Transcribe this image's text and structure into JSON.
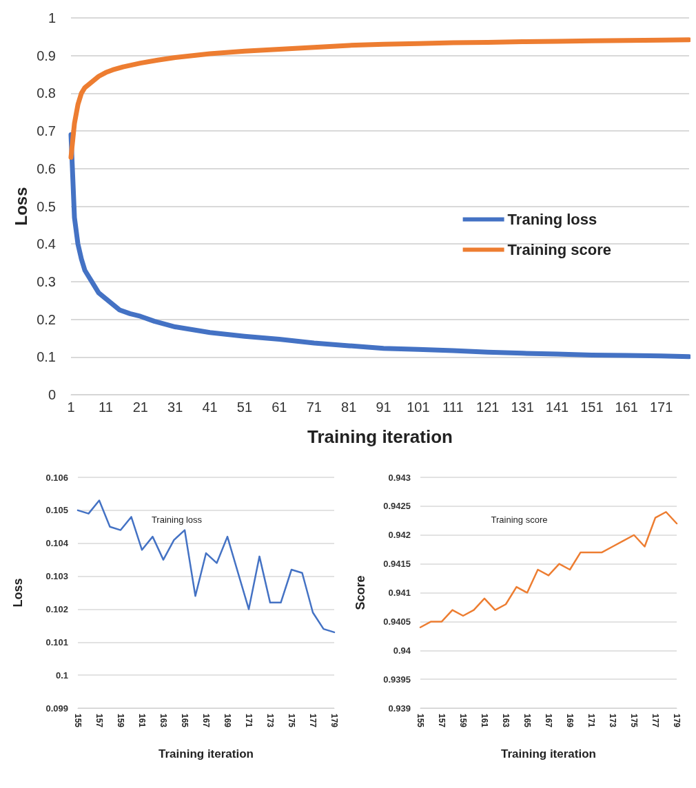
{
  "chart_data": [
    {
      "type": "line",
      "xlabel": "Training iteration",
      "ylabel": "Loss",
      "xlim": [
        1,
        179
      ],
      "xticks": [
        1,
        11,
        21,
        31,
        41,
        51,
        61,
        71,
        81,
        91,
        101,
        111,
        121,
        131,
        141,
        151,
        161,
        171
      ],
      "ylim": [
        0,
        1
      ],
      "yticks": [
        0,
        0.1,
        0.2,
        0.3,
        0.4,
        0.5,
        0.6,
        0.7,
        0.8,
        0.9,
        1
      ],
      "grid": "y",
      "legend": "right",
      "marker": "none",
      "line_style": "solid",
      "series": [
        {
          "name": "Traning loss",
          "color": "#4472c4",
          "x": [
            1,
            2,
            3,
            4,
            5,
            7,
            9,
            11,
            13,
            15,
            18,
            21,
            25,
            31,
            41,
            51,
            61,
            71,
            81,
            91,
            101,
            111,
            121,
            131,
            141,
            151,
            161,
            171,
            179
          ],
          "values": [
            0.69,
            0.47,
            0.4,
            0.36,
            0.33,
            0.3,
            0.27,
            0.255,
            0.24,
            0.225,
            0.215,
            0.208,
            0.195,
            0.18,
            0.165,
            0.155,
            0.147,
            0.137,
            0.13,
            0.123,
            0.12,
            0.117,
            0.113,
            0.11,
            0.108,
            0.105,
            0.104,
            0.103,
            0.101
          ]
        },
        {
          "name": "Training score",
          "color": "#ed7d31",
          "x": [
            1,
            2,
            3,
            4,
            5,
            7,
            9,
            11,
            13,
            16,
            21,
            26,
            31,
            41,
            51,
            61,
            71,
            81,
            91,
            101,
            111,
            121,
            131,
            141,
            151,
            161,
            171,
            179
          ],
          "values": [
            0.63,
            0.72,
            0.77,
            0.8,
            0.815,
            0.83,
            0.845,
            0.855,
            0.862,
            0.87,
            0.88,
            0.888,
            0.895,
            0.905,
            0.912,
            0.917,
            0.922,
            0.927,
            0.93,
            0.932,
            0.934,
            0.935,
            0.937,
            0.938,
            0.939,
            0.94,
            0.941,
            0.942
          ]
        }
      ]
    },
    {
      "type": "line",
      "title": "Training loss",
      "xlabel": "Training iteration",
      "ylabel": "Loss",
      "categories": [
        "155",
        null,
        "157",
        null,
        "159",
        null,
        "161",
        null,
        "163",
        null,
        "165",
        null,
        "167",
        null,
        "169",
        null,
        "171",
        null,
        "173",
        null,
        "175",
        null,
        "177",
        null,
        "179"
      ],
      "ylim": [
        0.099,
        0.106
      ],
      "yticks": [
        0.099,
        0.1,
        0.101,
        0.102,
        0.103,
        0.104,
        0.105,
        0.106
      ],
      "grid": "y",
      "legend": false,
      "marker": "none",
      "line_style": "solid",
      "series": [
        {
          "color": "#4472c4",
          "values": [
            0.105,
            0.1049,
            0.1053,
            0.1045,
            0.1044,
            0.1048,
            0.1038,
            0.1042,
            0.1035,
            0.1041,
            0.1044,
            0.1024,
            0.1037,
            0.1034,
            0.1042,
            0.1031,
            0.102,
            0.1036,
            0.1022,
            0.1022,
            0.1032,
            0.1031,
            0.1019,
            0.1014,
            0.1013
          ]
        }
      ]
    },
    {
      "type": "line",
      "title": "Training score",
      "xlabel": "Training iteration",
      "ylabel": "Score",
      "categories": [
        "155",
        null,
        "157",
        null,
        "159",
        null,
        "161",
        null,
        "163",
        null,
        "165",
        null,
        "167",
        null,
        "169",
        null,
        "171",
        null,
        "173",
        null,
        "175",
        null,
        "177",
        null,
        "179"
      ],
      "ylim": [
        0.939,
        0.943
      ],
      "yticks": [
        0.939,
        0.9395,
        0.94,
        0.9405,
        0.941,
        0.9415,
        0.942,
        0.9425,
        0.943
      ],
      "grid": "y",
      "legend": false,
      "marker": "none",
      "line_style": "solid",
      "series": [
        {
          "color": "#ed7d31",
          "values": [
            0.9404,
            0.9405,
            0.9405,
            0.9407,
            0.9406,
            0.9407,
            0.9409,
            0.9407,
            0.9408,
            0.9411,
            0.941,
            0.9414,
            0.9413,
            0.9415,
            0.9414,
            0.9417,
            0.9417,
            0.9417,
            0.9418,
            0.9419,
            0.942,
            0.9418,
            0.9423,
            0.9424,
            0.9422
          ]
        }
      ]
    }
  ]
}
